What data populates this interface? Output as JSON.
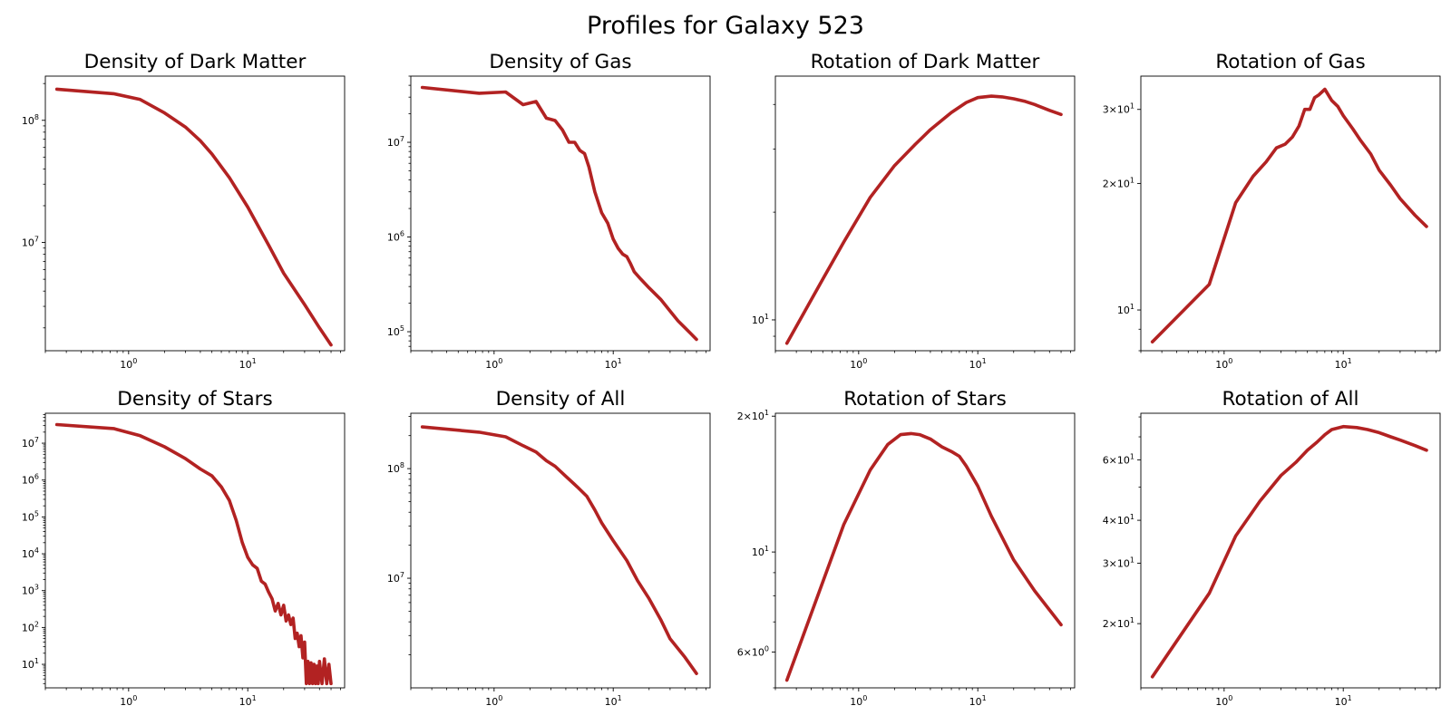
{
  "figure": {
    "title": "Profiles for Galaxy 523",
    "line_color": "#b22222"
  },
  "chart_data": [
    {
      "type": "line",
      "title": "Density of Dark Matter",
      "xscale": "log",
      "yscale": "log",
      "xlim": [
        0.2,
        65
      ],
      "ylim": [
        1300000.0,
        230000000.0
      ],
      "grid": false,
      "xticks": [
        {
          "value": 1,
          "base": "10",
          "exp": "0"
        },
        {
          "value": 10,
          "base": "10",
          "exp": "1"
        }
      ],
      "yticks": [
        {
          "value": 10000000.0,
          "base": "10",
          "exp": "7"
        },
        {
          "value": 100000000.0,
          "base": "10",
          "exp": "8"
        }
      ],
      "series": [
        {
          "x": [
            0.25,
            0.75,
            1.25,
            2,
            3,
            4,
            5,
            7,
            10,
            15,
            20,
            30,
            40,
            50
          ],
          "y": [
            180000000.0,
            165000000.0,
            148000000.0,
            115000000.0,
            88000000.0,
            68000000.0,
            53000000.0,
            34000000.0,
            19500000.0,
            9500000.0,
            5600000.0,
            3100000.0,
            2000000.0,
            1450000.0
          ]
        }
      ]
    },
    {
      "type": "line",
      "title": "Density of Gas",
      "xscale": "log",
      "yscale": "log",
      "xlim": [
        0.2,
        65
      ],
      "ylim": [
        63000.0,
        50000000.0
      ],
      "grid": false,
      "xticks": [
        {
          "value": 1,
          "base": "10",
          "exp": "0"
        },
        {
          "value": 10,
          "base": "10",
          "exp": "1"
        }
      ],
      "yticks": [
        {
          "value": 100000.0,
          "base": "10",
          "exp": "5"
        },
        {
          "value": 1000000.0,
          "base": "10",
          "exp": "6"
        },
        {
          "value": 10000000.0,
          "base": "10",
          "exp": "7"
        }
      ],
      "series": [
        {
          "x": [
            0.25,
            0.75,
            1.25,
            1.75,
            2.25,
            2.75,
            3.25,
            3.75,
            4.25,
            4.75,
            5.25,
            5.75,
            6.25,
            7,
            8,
            9,
            10,
            11,
            12,
            13,
            14,
            15,
            17,
            20,
            25,
            30,
            35,
            40,
            45,
            50
          ],
          "y": [
            38000000.0,
            33000000.0,
            34000000.0,
            25000000.0,
            27000000.0,
            18000000.0,
            17000000.0,
            13500000.0,
            10000000.0,
            10000000.0,
            8200000.0,
            7600000.0,
            5500000.0,
            3000000.0,
            1800000.0,
            1400000.0,
            950000.0,
            760000.0,
            660000.0,
            620000.0,
            520000.0,
            430000.0,
            360000.0,
            290000.0,
            220000.0,
            165000.0,
            130000.0,
            110000.0,
            95000.0,
            83000.0
          ]
        }
      ]
    },
    {
      "type": "line",
      "title": "Rotation of Dark Matter",
      "xscale": "log",
      "yscale": "log",
      "xlim": [
        0.2,
        65
      ],
      "ylim": [
        8.2,
        48
      ],
      "grid": false,
      "xticks": [
        {
          "value": 1,
          "base": "10",
          "exp": "0"
        },
        {
          "value": 10,
          "base": "10",
          "exp": "1"
        }
      ],
      "yticks": [
        {
          "value": 10,
          "base": "10",
          "exp": "1"
        }
      ],
      "series": [
        {
          "x": [
            0.25,
            0.5,
            0.75,
            1.25,
            2,
            3,
            4,
            6,
            8,
            10,
            13,
            16,
            20,
            25,
            30,
            40,
            50
          ],
          "y": [
            8.6,
            13.0,
            16.5,
            22.0,
            27.0,
            31.0,
            34.0,
            38.0,
            40.5,
            41.8,
            42.2,
            42.0,
            41.5,
            40.8,
            40.0,
            38.5,
            37.5
          ]
        }
      ]
    },
    {
      "type": "line",
      "title": "Rotation of Gas",
      "xscale": "log",
      "yscale": "log",
      "xlim": [
        0.2,
        65
      ],
      "ylim": [
        8.0,
        36
      ],
      "grid": false,
      "xticks": [
        {
          "value": 1,
          "base": "10",
          "exp": "0"
        },
        {
          "value": 10,
          "base": "10",
          "exp": "1"
        }
      ],
      "yticks": [
        {
          "value": 10,
          "base": "10",
          "exp": "1"
        },
        {
          "value": 20,
          "base": "2×10",
          "exp": "1"
        },
        {
          "value": 30,
          "base": "3×10",
          "exp": "1"
        }
      ],
      "series": [
        {
          "x": [
            0.25,
            0.75,
            1.25,
            1.75,
            2.25,
            2.75,
            3.25,
            3.75,
            4.25,
            4.75,
            5.25,
            5.75,
            6.25,
            7,
            8,
            9,
            10,
            12,
            14,
            17,
            20,
            25,
            30,
            40,
            50
          ],
          "y": [
            8.4,
            11.5,
            18.0,
            20.8,
            22.5,
            24.3,
            24.8,
            25.8,
            27.4,
            30.0,
            30.0,
            32.0,
            32.5,
            33.5,
            31.5,
            30.5,
            29.0,
            27.0,
            25.3,
            23.5,
            21.5,
            19.8,
            18.4,
            16.8,
            15.8
          ]
        }
      ]
    },
    {
      "type": "line",
      "title": "Density of Stars",
      "xscale": "log",
      "yscale": "log",
      "xlim": [
        0.2,
        65
      ],
      "ylim": [
        2.3,
        65000000.0
      ],
      "grid": false,
      "xticks": [
        {
          "value": 1,
          "base": "10",
          "exp": "0"
        },
        {
          "value": 10,
          "base": "10",
          "exp": "1"
        }
      ],
      "yticks": [
        {
          "value": 10,
          "base": "10",
          "exp": "1"
        },
        {
          "value": 100,
          "base": "10",
          "exp": "2"
        },
        {
          "value": 1000,
          "base": "10",
          "exp": "3"
        },
        {
          "value": 10000,
          "base": "10",
          "exp": "4"
        },
        {
          "value": 100000,
          "base": "10",
          "exp": "5"
        },
        {
          "value": 1000000,
          "base": "10",
          "exp": "6"
        },
        {
          "value": 10000000,
          "base": "10",
          "exp": "7"
        }
      ],
      "series": [
        {
          "x": [
            0.25,
            0.75,
            1.25,
            2,
            3,
            4,
            5,
            6,
            7,
            8,
            9,
            10,
            11,
            12,
            13,
            14,
            15,
            16,
            17,
            18,
            19,
            20,
            21,
            22,
            23,
            24,
            25,
            26,
            27,
            28,
            29,
            30,
            31,
            32,
            33,
            34,
            35,
            36,
            37,
            38,
            39,
            40,
            42,
            44,
            46,
            48,
            50
          ],
          "y": [
            32000000.0,
            25000000.0,
            16000000.0,
            8000000.0,
            3800000.0,
            2000000.0,
            1300000.0,
            650000.0,
            280000.0,
            80000.0,
            20000.0,
            8000.0,
            5000.0,
            4000.0,
            1800.0,
            1500.0,
            900.0,
            600.0,
            280.0,
            450.0,
            220.0,
            400.0,
            150.0,
            220.0,
            120.0,
            180.0,
            50,
            70,
            30,
            60,
            15,
            40,
            3,
            12,
            3,
            11,
            3,
            10,
            3,
            9,
            3,
            12,
            3,
            14,
            3,
            10,
            3
          ]
        }
      ]
    },
    {
      "type": "line",
      "title": "Density of All",
      "xscale": "log",
      "yscale": "log",
      "xlim": [
        0.2,
        65
      ],
      "ylim": [
        1000000.0,
        320000000.0
      ],
      "grid": false,
      "xticks": [
        {
          "value": 1,
          "base": "10",
          "exp": "0"
        },
        {
          "value": 10,
          "base": "10",
          "exp": "1"
        }
      ],
      "yticks": [
        {
          "value": 10000000.0,
          "base": "10",
          "exp": "7"
        },
        {
          "value": 100000000.0,
          "base": "10",
          "exp": "8"
        }
      ],
      "series": [
        {
          "x": [
            0.25,
            0.75,
            1.25,
            1.75,
            2.25,
            2.75,
            3.25,
            4,
            5,
            6,
            7,
            8,
            10,
            13,
            16,
            20,
            25,
            30,
            40,
            50
          ],
          "y": [
            240000000.0,
            215000000.0,
            195000000.0,
            162000000.0,
            142000000.0,
            118000000.0,
            105000000.0,
            85000000.0,
            68000000.0,
            56000000.0,
            42000000.0,
            32000000.0,
            22000000.0,
            14500000.0,
            9500000.0,
            6500000.0,
            4200000.0,
            2800000.0,
            1900000.0,
            1350000.0
          ]
        }
      ]
    },
    {
      "type": "line",
      "title": "Rotation of Stars",
      "xscale": "log",
      "yscale": "log",
      "xlim": [
        0.2,
        65
      ],
      "ylim": [
        5.0,
        20.3
      ],
      "grid": false,
      "xticks": [
        {
          "value": 1,
          "base": "10",
          "exp": "0"
        },
        {
          "value": 10,
          "base": "10",
          "exp": "1"
        }
      ],
      "yticks": [
        {
          "value": 6,
          "base": "6×10",
          "exp": "0"
        },
        {
          "value": 10,
          "base": "10",
          "exp": "1"
        },
        {
          "value": 20,
          "base": "2×10",
          "exp": "1"
        }
      ],
      "series": [
        {
          "x": [
            0.25,
            0.75,
            1.25,
            1.75,
            2.25,
            2.75,
            3.25,
            4,
            5,
            6,
            7,
            8,
            10,
            13,
            20,
            30,
            50
          ],
          "y": [
            5.2,
            11.5,
            15.2,
            17.3,
            18.2,
            18.3,
            18.2,
            17.8,
            17.1,
            16.7,
            16.3,
            15.5,
            14.0,
            12.0,
            9.6,
            8.2,
            6.9
          ]
        }
      ]
    },
    {
      "type": "line",
      "title": "Rotation of All",
      "xscale": "log",
      "yscale": "log",
      "xlim": [
        0.2,
        65
      ],
      "ylim": [
        13,
        82
      ],
      "grid": false,
      "xticks": [
        {
          "value": 1,
          "base": "10",
          "exp": "0"
        },
        {
          "value": 10,
          "base": "10",
          "exp": "1"
        }
      ],
      "yticks": [
        {
          "value": 20,
          "base": "2×10",
          "exp": "1"
        },
        {
          "value": 30,
          "base": "3×10",
          "exp": "1"
        },
        {
          "value": 40,
          "base": "4×10",
          "exp": "1"
        },
        {
          "value": 60,
          "base": "6×10",
          "exp": "1"
        }
      ],
      "series": [
        {
          "x": [
            0.25,
            0.75,
            1.25,
            2,
            3,
            4,
            5,
            6,
            7,
            8,
            10,
            13,
            16,
            20,
            25,
            30,
            40,
            50
          ],
          "y": [
            14.0,
            24.5,
            36.0,
            45.5,
            54.0,
            59.0,
            64.0,
            67.5,
            71.0,
            73.5,
            75.0,
            74.5,
            73.5,
            72.0,
            70.0,
            68.5,
            66.0,
            64.0
          ]
        }
      ]
    }
  ]
}
